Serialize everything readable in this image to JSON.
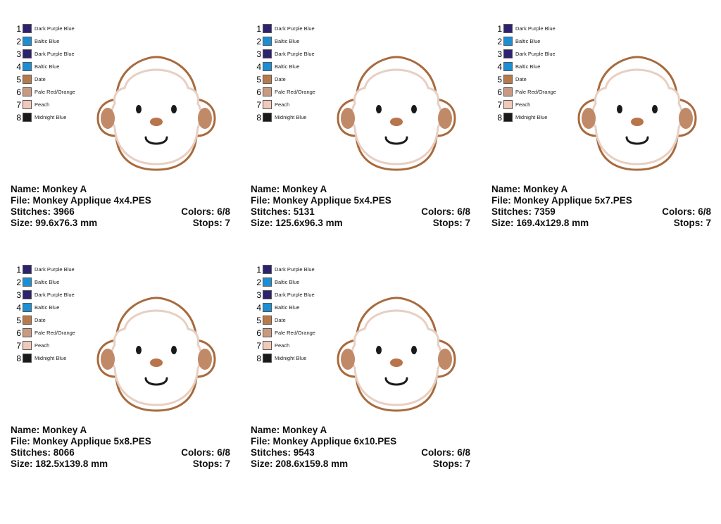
{
  "palette": [
    {
      "num": "1",
      "name": "Dark Purple Blue",
      "color": "#2d2270"
    },
    {
      "num": "2",
      "name": "Baltic Blue",
      "color": "#1a8fd6"
    },
    {
      "num": "3",
      "name": "Dark Purple Blue",
      "color": "#2d2270"
    },
    {
      "num": "4",
      "name": "Baltic Blue",
      "color": "#1a8fd6"
    },
    {
      "num": "5",
      "name": "Date",
      "color": "#b97a4a"
    },
    {
      "num": "6",
      "name": "Pale Red/Orange",
      "color": "#c99a80"
    },
    {
      "num": "7",
      "name": "Peach",
      "color": "#f2c8b8"
    },
    {
      "num": "8",
      "name": "Midnight Blue",
      "color": "#1a1a1a"
    }
  ],
  "designs": [
    {
      "name_label": "Name: Monkey A",
      "file_label": "File: Monkey Applique 4x4.PES",
      "stitches_label": "Stitches: 3966",
      "colors_label": "Colors: 6/8",
      "size_label": "Size: 99.6x76.3 mm",
      "stops_label": "Stops: 7"
    },
    {
      "name_label": "Name: Monkey A",
      "file_label": "File: Monkey Applique 5x4.PES",
      "stitches_label": "Stitches: 5131",
      "colors_label": "Colors: 6/8",
      "size_label": "Size: 125.6x96.3 mm",
      "stops_label": "Stops: 7"
    },
    {
      "name_label": "Name: Monkey A",
      "file_label": "File: Monkey Applique 5x7.PES",
      "stitches_label": "Stitches: 7359",
      "colors_label": "Colors: 6/8",
      "size_label": "Size: 169.4x129.8 mm",
      "stops_label": "Stops: 7"
    },
    {
      "name_label": "Name: Monkey A",
      "file_label": "File: Monkey Applique 5x8.PES",
      "stitches_label": "Stitches: 8066",
      "colors_label": "Colors: 6/8",
      "size_label": "Size: 182.5x139.8 mm",
      "stops_label": "Stops: 7"
    },
    {
      "name_label": "Name: Monkey A",
      "file_label": "File: Monkey Applique 6x10.PES",
      "stitches_label": "Stitches: 9543",
      "colors_label": "Colors: 6/8",
      "size_label": "Size: 208.6x159.8 mm",
      "stops_label": "Stops: 7"
    }
  ],
  "monkey_colors": {
    "outline": "#a86a3c",
    "ear": "#c08a68",
    "face_fill": "#ffffff",
    "face_outline": "#e8cfc2",
    "eyes": "#1a1a1a",
    "nose": "#b8744a",
    "mouth": "#1a1a1a"
  }
}
